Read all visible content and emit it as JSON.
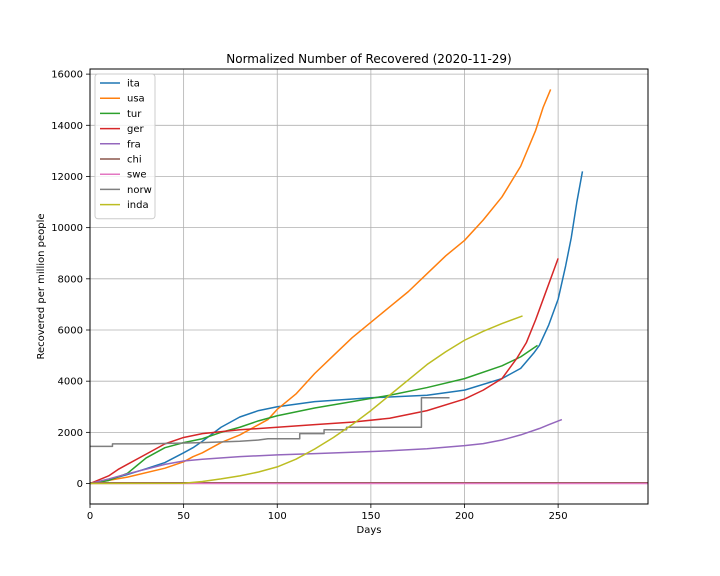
{
  "chart_data": {
    "type": "line",
    "title": "Normalized Number of Recovered (2020-11-29)",
    "xlabel": "Days",
    "ylabel": "Recovered per million people",
    "xlim": [
      0,
      298
    ],
    "ylim": [
      -800,
      16200
    ],
    "xticks": [
      0,
      50,
      100,
      150,
      200,
      250
    ],
    "yticks": [
      0,
      2000,
      4000,
      6000,
      8000,
      10000,
      12000,
      14000,
      16000
    ],
    "grid": true,
    "legend_position": "top-left",
    "series": [
      {
        "name": "ita",
        "color": "#1f77b4",
        "step": false,
        "points": [
          [
            0,
            0
          ],
          [
            10,
            150
          ],
          [
            20,
            350
          ],
          [
            30,
            580
          ],
          [
            40,
            820
          ],
          [
            50,
            1200
          ],
          [
            55,
            1400
          ],
          [
            60,
            1650
          ],
          [
            70,
            2200
          ],
          [
            80,
            2600
          ],
          [
            90,
            2850
          ],
          [
            100,
            3000
          ],
          [
            120,
            3200
          ],
          [
            150,
            3350
          ],
          [
            180,
            3450
          ],
          [
            200,
            3650
          ],
          [
            220,
            4100
          ],
          [
            230,
            4500
          ],
          [
            237,
            5100
          ],
          [
            240,
            5400
          ],
          [
            245,
            6200
          ],
          [
            250,
            7200
          ],
          [
            254,
            8500
          ],
          [
            257,
            9600
          ],
          [
            260,
            11000
          ],
          [
            263,
            12200
          ]
        ]
      },
      {
        "name": "usa",
        "color": "#ff7f0e",
        "step": false,
        "points": [
          [
            0,
            0
          ],
          [
            20,
            250
          ],
          [
            40,
            600
          ],
          [
            50,
            850
          ],
          [
            55,
            1050
          ],
          [
            60,
            1200
          ],
          [
            70,
            1600
          ],
          [
            80,
            1900
          ],
          [
            90,
            2300
          ],
          [
            95,
            2500
          ],
          [
            100,
            2900
          ],
          [
            110,
            3500
          ],
          [
            120,
            4300
          ],
          [
            130,
            5000
          ],
          [
            140,
            5700
          ],
          [
            150,
            6300
          ],
          [
            160,
            6900
          ],
          [
            170,
            7500
          ],
          [
            180,
            8200
          ],
          [
            190,
            8900
          ],
          [
            200,
            9500
          ],
          [
            210,
            10300
          ],
          [
            220,
            11200
          ],
          [
            230,
            12400
          ],
          [
            238,
            13800
          ],
          [
            242,
            14700
          ],
          [
            246,
            15400
          ]
        ]
      },
      {
        "name": "tur",
        "color": "#2ca02c",
        "step": false,
        "points": [
          [
            0,
            0
          ],
          [
            10,
            120
          ],
          [
            20,
            400
          ],
          [
            25,
            700
          ],
          [
            30,
            1000
          ],
          [
            40,
            1400
          ],
          [
            50,
            1600
          ],
          [
            60,
            1750
          ],
          [
            70,
            2000
          ],
          [
            80,
            2200
          ],
          [
            90,
            2450
          ],
          [
            100,
            2650
          ],
          [
            120,
            2950
          ],
          [
            140,
            3200
          ],
          [
            160,
            3450
          ],
          [
            180,
            3750
          ],
          [
            200,
            4100
          ],
          [
            220,
            4600
          ],
          [
            230,
            4950
          ],
          [
            239,
            5400
          ]
        ]
      },
      {
        "name": "ger",
        "color": "#d62728",
        "step": false,
        "points": [
          [
            0,
            0
          ],
          [
            10,
            300
          ],
          [
            15,
            550
          ],
          [
            20,
            750
          ],
          [
            30,
            1150
          ],
          [
            40,
            1550
          ],
          [
            50,
            1800
          ],
          [
            60,
            1950
          ],
          [
            80,
            2100
          ],
          [
            100,
            2200
          ],
          [
            120,
            2300
          ],
          [
            140,
            2400
          ],
          [
            160,
            2550
          ],
          [
            180,
            2850
          ],
          [
            200,
            3300
          ],
          [
            210,
            3650
          ],
          [
            220,
            4100
          ],
          [
            228,
            4900
          ],
          [
            233,
            5500
          ],
          [
            238,
            6400
          ],
          [
            243,
            7400
          ],
          [
            247,
            8200
          ],
          [
            250,
            8800
          ]
        ]
      },
      {
        "name": "fra",
        "color": "#9467bd",
        "step": false,
        "points": [
          [
            0,
            0
          ],
          [
            10,
            180
          ],
          [
            20,
            380
          ],
          [
            30,
            560
          ],
          [
            40,
            750
          ],
          [
            50,
            880
          ],
          [
            60,
            950
          ],
          [
            80,
            1050
          ],
          [
            100,
            1120
          ],
          [
            120,
            1170
          ],
          [
            140,
            1220
          ],
          [
            160,
            1280
          ],
          [
            180,
            1360
          ],
          [
            200,
            1480
          ],
          [
            210,
            1560
          ],
          [
            220,
            1700
          ],
          [
            230,
            1900
          ],
          [
            240,
            2150
          ],
          [
            245,
            2300
          ],
          [
            252,
            2500
          ]
        ]
      },
      {
        "name": "chi",
        "color": "#8c564b",
        "step": false,
        "points": [
          [
            0,
            30
          ],
          [
            298,
            30
          ]
        ]
      },
      {
        "name": "swe",
        "color": "#e377c2",
        "step": false,
        "points": [
          [
            0,
            0
          ],
          [
            298,
            0
          ]
        ]
      },
      {
        "name": "norw",
        "color": "#7f7f7f",
        "step": true,
        "points": [
          [
            0,
            1450
          ],
          [
            12,
            1450
          ],
          [
            12,
            1550
          ],
          [
            30,
            1550
          ],
          [
            60,
            1600
          ],
          [
            80,
            1650
          ],
          [
            90,
            1700
          ],
          [
            95,
            1750
          ],
          [
            112,
            1750
          ],
          [
            112,
            1950
          ],
          [
            125,
            1950
          ],
          [
            125,
            2100
          ],
          [
            137,
            2100
          ],
          [
            137,
            2200
          ],
          [
            155,
            2200
          ],
          [
            177,
            2200
          ],
          [
            177,
            3350
          ],
          [
            192,
            3350
          ]
        ]
      },
      {
        "name": "inda",
        "color": "#bcbd22",
        "step": false,
        "points": [
          [
            0,
            0
          ],
          [
            50,
            10
          ],
          [
            60,
            80
          ],
          [
            70,
            180
          ],
          [
            80,
            300
          ],
          [
            90,
            450
          ],
          [
            100,
            650
          ],
          [
            110,
            950
          ],
          [
            120,
            1350
          ],
          [
            130,
            1800
          ],
          [
            140,
            2300
          ],
          [
            150,
            2850
          ],
          [
            160,
            3450
          ],
          [
            170,
            4050
          ],
          [
            180,
            4650
          ],
          [
            190,
            5150
          ],
          [
            200,
            5600
          ],
          [
            210,
            5950
          ],
          [
            220,
            6250
          ],
          [
            231,
            6550
          ]
        ]
      }
    ]
  }
}
